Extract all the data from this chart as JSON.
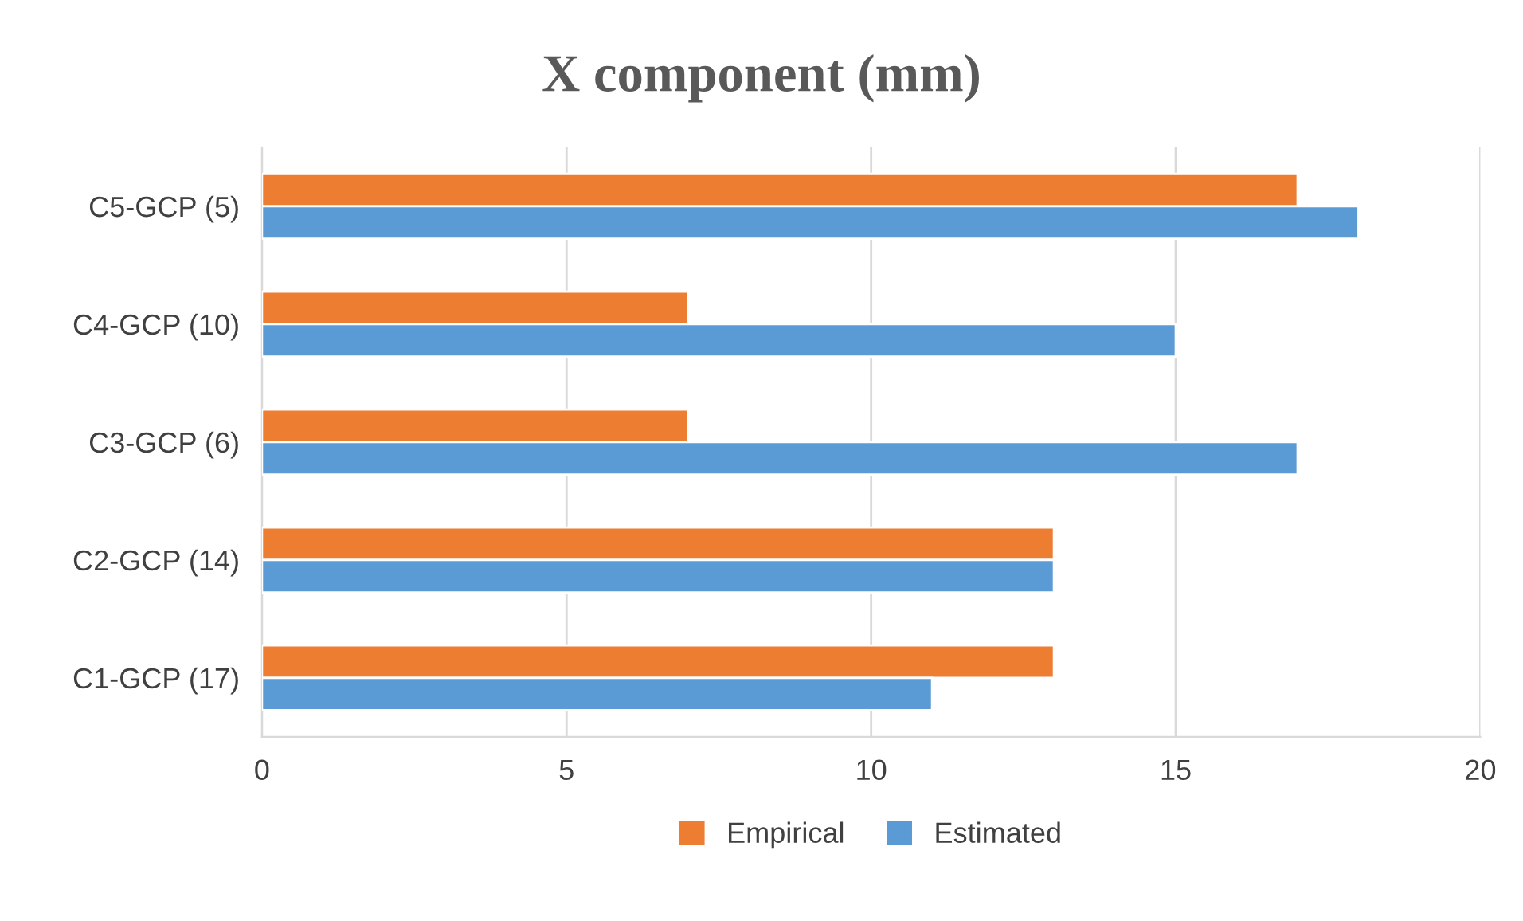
{
  "chart_data": {
    "type": "bar",
    "orientation": "horizontal",
    "title": "X component (mm)",
    "categories": [
      "C5-GCP (5)",
      "C4-GCP (10)",
      "C3-GCP (6)",
      "C2-GCP (14)",
      "C1-GCP (17)"
    ],
    "series": [
      {
        "name": "Empirical",
        "color": "#ed7d31",
        "values": [
          17,
          7,
          7,
          13,
          13
        ]
      },
      {
        "name": "Estimated",
        "color": "#5b9bd5",
        "values": [
          18,
          15,
          17,
          13,
          11
        ]
      }
    ],
    "xlim": [
      0,
      20
    ],
    "xticks": [
      0,
      5,
      10,
      15,
      20
    ],
    "grid": "x",
    "legend": "bottom"
  }
}
